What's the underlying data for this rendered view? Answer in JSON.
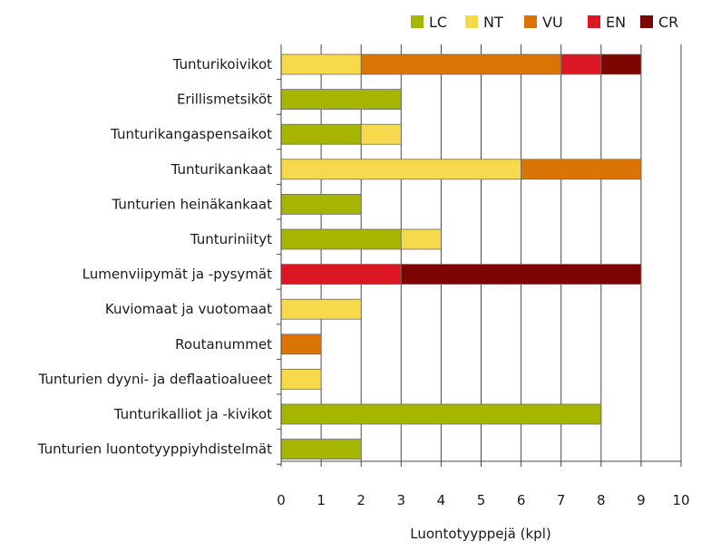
{
  "chart_data": {
    "type": "bar",
    "orientation": "horizontal",
    "stacked": true,
    "title": "",
    "xlabel": "Luontotyyppejä (kpl)",
    "ylabel": "",
    "xlim": [
      0,
      10
    ],
    "xticks": [
      0,
      1,
      2,
      3,
      4,
      5,
      6,
      7,
      8,
      9,
      10
    ],
    "grid": true,
    "legend_position": "top-right",
    "categories": [
      "Tunturikoivikot",
      "Erillismetsiköt",
      "Tunturikangaspensaikot",
      "Tunturikankaat",
      "Tunturien heinäkankaat",
      "Tunturiniityt",
      "Lumenviipymät ja -pysymät",
      "Kuviomaat ja vuotomaat",
      "Routanummet",
      "Tunturien dyyni- ja deflaatioalueet",
      "Tunturikalliot ja -kivikot",
      "Tunturien luontotyyppiyhdistelmät"
    ],
    "series": [
      {
        "name": "LC",
        "color": "#a5b500",
        "values": [
          0,
          3,
          2,
          0,
          2,
          3,
          0,
          0,
          0,
          0,
          8,
          2
        ]
      },
      {
        "name": "NT",
        "color": "#f7d94c",
        "values": [
          2,
          0,
          1,
          6,
          0,
          1,
          0,
          2,
          0,
          1,
          0,
          0
        ]
      },
      {
        "name": "VU",
        "color": "#dc7305",
        "values": [
          5,
          0,
          0,
          3,
          0,
          0,
          0,
          0,
          1,
          0,
          0,
          0
        ]
      },
      {
        "name": "EN",
        "color": "#dc1723",
        "values": [
          1,
          0,
          0,
          0,
          0,
          0,
          3,
          0,
          0,
          0,
          0,
          0
        ]
      },
      {
        "name": "CR",
        "color": "#7d0500",
        "values": [
          1,
          0,
          0,
          0,
          0,
          0,
          6,
          0,
          0,
          0,
          0,
          0
        ]
      }
    ]
  }
}
